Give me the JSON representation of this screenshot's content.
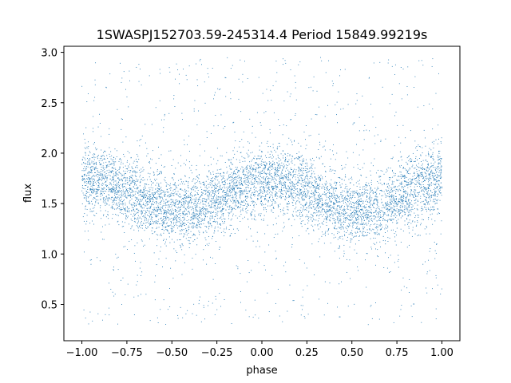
{
  "chart_data": {
    "type": "scatter",
    "title": "1SWASPJ152703.59-245314.4 Period 15849.99219s",
    "xlabel": "phase",
    "ylabel": "flux",
    "xlim": [
      -1.1,
      1.1
    ],
    "ylim": [
      0.14,
      3.06
    ],
    "xticks": [
      {
        "value": -1.0,
        "label": "−1.00"
      },
      {
        "value": -0.75,
        "label": "−0.75"
      },
      {
        "value": -0.5,
        "label": "−0.50"
      },
      {
        "value": -0.25,
        "label": "−0.25"
      },
      {
        "value": 0.0,
        "label": "0.00"
      },
      {
        "value": 0.25,
        "label": "0.25"
      },
      {
        "value": 0.5,
        "label": "0.50"
      },
      {
        "value": 0.75,
        "label": "0.75"
      },
      {
        "value": 1.0,
        "label": "1.00"
      }
    ],
    "yticks": [
      {
        "value": 0.5,
        "label": "0.5"
      },
      {
        "value": 1.0,
        "label": "1.0"
      },
      {
        "value": 1.5,
        "label": "1.5"
      },
      {
        "value": 2.0,
        "label": "2.0"
      },
      {
        "value": 2.5,
        "label": "2.5"
      },
      {
        "value": 3.0,
        "label": "3.0"
      }
    ],
    "series": [
      {
        "color": "#1f77b4",
        "x": [
          -1.0,
          -0.95,
          -0.9,
          -0.85,
          -0.8,
          -0.75,
          -0.7,
          -0.65,
          -0.6,
          -0.55,
          -0.5,
          -0.45,
          -0.4,
          -0.35,
          -0.3,
          -0.25,
          -0.2,
          -0.15,
          -0.1,
          -0.05,
          0.0,
          0.05,
          0.1,
          0.15,
          0.2,
          0.25,
          0.3,
          0.35,
          0.4,
          0.45,
          0.5,
          0.55,
          0.6,
          0.65,
          0.7,
          0.75,
          0.8,
          0.85,
          0.9,
          0.95,
          1.0
        ],
        "y": [
          1.73,
          1.73,
          1.72,
          1.7,
          1.67,
          1.63,
          1.58,
          1.53,
          1.49,
          1.45,
          1.43,
          1.42,
          1.43,
          1.46,
          1.5,
          1.55,
          1.6,
          1.65,
          1.69,
          1.72,
          1.73,
          1.73,
          1.72,
          1.7,
          1.67,
          1.63,
          1.58,
          1.53,
          1.49,
          1.45,
          1.43,
          1.42,
          1.43,
          1.46,
          1.5,
          1.55,
          1.6,
          1.65,
          1.69,
          1.72,
          1.73
        ],
        "scatter_sd": 0.17,
        "outlier_range": [
          0.3,
          2.95
        ]
      }
    ],
    "grid": false,
    "legend": "none"
  }
}
